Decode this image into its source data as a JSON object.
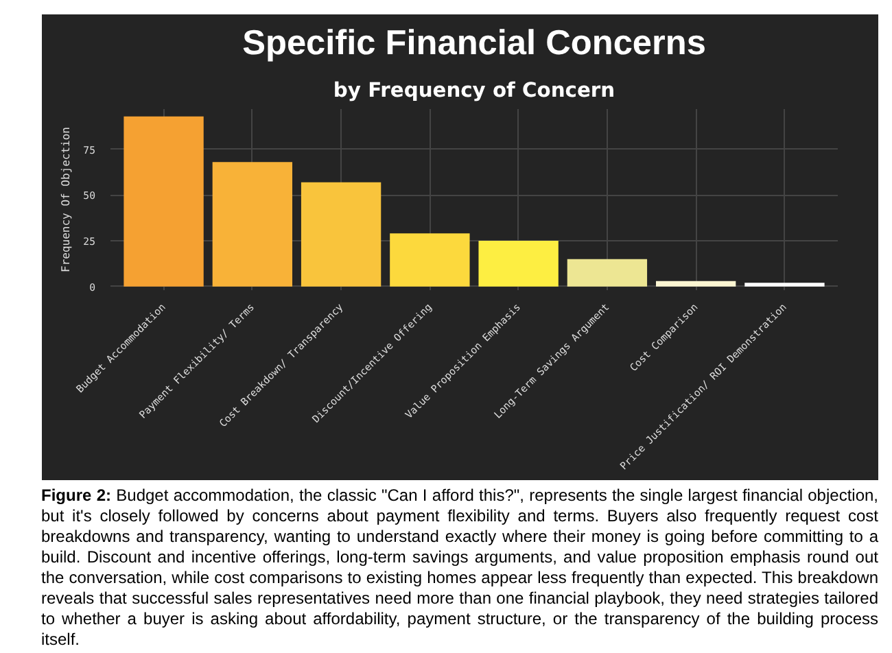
{
  "chart_data": {
    "type": "bar",
    "title": "Specific Financial Concerns",
    "subtitle": "by Frequency of Concern",
    "ylabel": "Frequency Of Objection",
    "categories": [
      "Budget Accommodation",
      "Payment Flexibility/\nTerms",
      "Cost Breakdown/\nTransparency",
      "Discount/Incentive\nOffering",
      "Value Proposition\nEmphasis",
      "Long-Term\nSavings Argument",
      "Cost Comparison",
      "Price Justification/\nROI Demonstration"
    ],
    "values": [
      93,
      68,
      57,
      29,
      25,
      15,
      3,
      2
    ],
    "colors": [
      "#f5a132",
      "#f8b238",
      "#f9c43c",
      "#fcd93d",
      "#fdee42",
      "#ede693",
      "#fcf6d2",
      "#ffffff"
    ],
    "ylim": [
      -2,
      97
    ],
    "yticks": [
      0,
      25,
      50,
      75
    ],
    "grid": true,
    "annotations": [
      "Figure 2: Budget accommodation, the classic \"Can I afford this?\", represents the single largest financial objection, but it's closely followed by concerns about payment flexibility and terms. Buyers also frequently request cost breakdowns and transparency, wanting to understand exactly where their money is going before committing to a build. Discount and incentive offerings, long-term savings arguments, and value proposition emphasis round out the conversation, while cost comparisons to existing homes appear less frequently than expected. This breakdown reveals that successful sales representatives need more than one financial playbook, they need strategies tailored to whether a buyer is asking about affordability, payment structure, or the transparency of the building process itself."
    ]
  }
}
